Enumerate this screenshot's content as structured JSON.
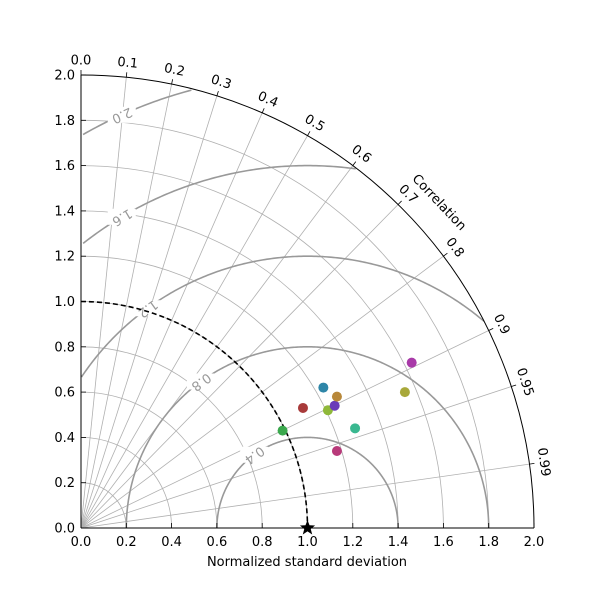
{
  "chart_data": {
    "type": "scatter",
    "subtype": "taylor-diagram",
    "title": "",
    "xlabel": "Normalized standard deviation",
    "ylabel": "",
    "angle_label": "Correlation",
    "xlim": [
      0,
      2.0
    ],
    "ylim": [
      0,
      2.0
    ],
    "x_ticks": [
      "0.0",
      "0.2",
      "0.4",
      "0.6",
      "0.8",
      "1.0",
      "1.2",
      "1.4",
      "1.6",
      "1.8",
      "2.0"
    ],
    "y_ticks": [
      "0.0",
      "0.2",
      "0.4",
      "0.6",
      "0.8",
      "1.0",
      "1.2",
      "1.4",
      "1.6",
      "1.8",
      "2.0"
    ],
    "correlation_ticks": [
      "0.0",
      "0.1",
      "0.2",
      "0.3",
      "0.4",
      "0.5",
      "0.6",
      "0.7",
      "0.8",
      "0.9",
      "0.95",
      "0.99"
    ],
    "rms_contours": [
      "0.4",
      "0.8",
      "1.2",
      "1.6",
      "2.0"
    ],
    "rms_contour_labels": [
      "0.4",
      "0.8",
      "1.2",
      "1.6",
      "2.0"
    ],
    "reference": {
      "std": 1.0,
      "corr": 1.0,
      "marker": "star",
      "color": "#000000"
    },
    "reference_arc_color": "#000000",
    "grid": true,
    "legend": "none",
    "points": [
      {
        "x": 0.89,
        "y": 0.43,
        "color": "#3aa84d"
      },
      {
        "x": 0.98,
        "y": 0.53,
        "color": "#a83a3a"
      },
      {
        "x": 1.07,
        "y": 0.62,
        "color": "#2e86a8"
      },
      {
        "x": 1.09,
        "y": 0.52,
        "color": "#8fb83a"
      },
      {
        "x": 1.12,
        "y": 0.54,
        "color": "#6a3ab8"
      },
      {
        "x": 1.13,
        "y": 0.58,
        "color": "#b8883a"
      },
      {
        "x": 1.13,
        "y": 0.34,
        "color": "#b83a7a"
      },
      {
        "x": 1.21,
        "y": 0.44,
        "color": "#3ab890"
      },
      {
        "x": 1.43,
        "y": 0.6,
        "color": "#a8a83a"
      },
      {
        "x": 1.46,
        "y": 0.73,
        "color": "#a83aa8"
      }
    ]
  }
}
